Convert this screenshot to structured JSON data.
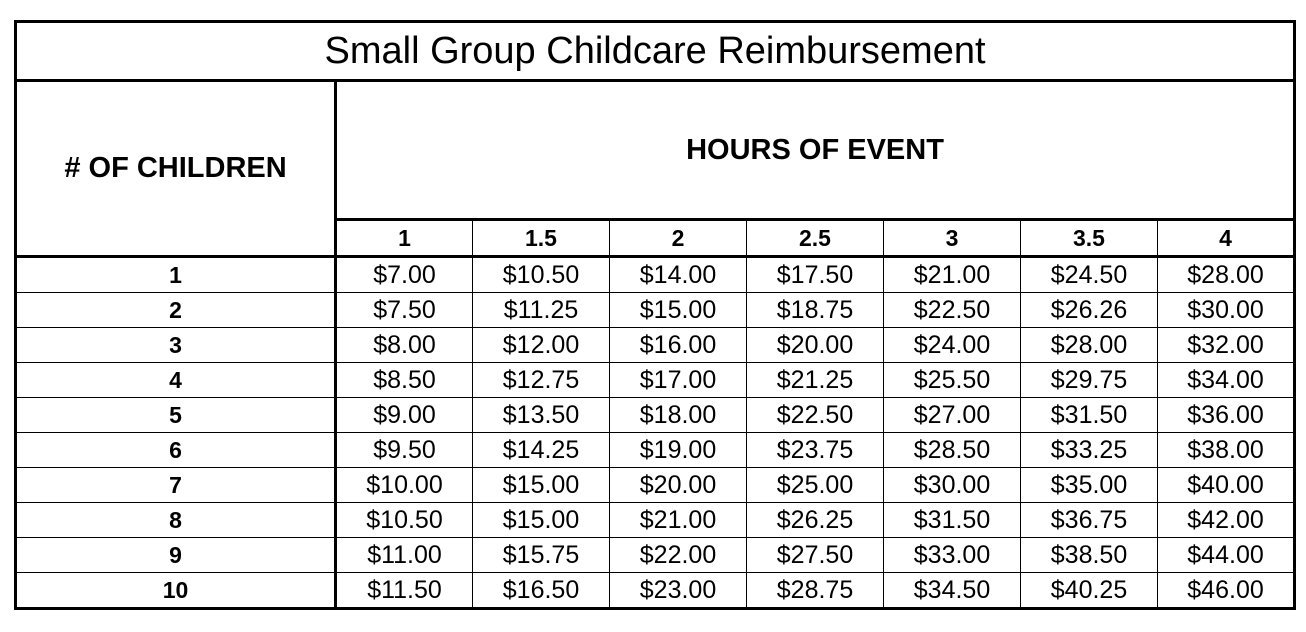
{
  "table": {
    "title": "Small Group Childcare Reimbursement",
    "row_header": "# OF CHILDREN",
    "column_group_header": "HOURS OF EVENT",
    "hours": [
      "1",
      "1.5",
      "2",
      "2.5",
      "3",
      "3.5",
      "4"
    ],
    "rows": [
      {
        "children": "1",
        "values": [
          "$7.00",
          "$10.50",
          "$14.00",
          "$17.50",
          "$21.00",
          "$24.50",
          "$28.00"
        ]
      },
      {
        "children": "2",
        "values": [
          "$7.50",
          "$11.25",
          "$15.00",
          "$18.75",
          "$22.50",
          "$26.26",
          "$30.00"
        ]
      },
      {
        "children": "3",
        "values": [
          "$8.00",
          "$12.00",
          "$16.00",
          "$20.00",
          "$24.00",
          "$28.00",
          "$32.00"
        ]
      },
      {
        "children": "4",
        "values": [
          "$8.50",
          "$12.75",
          "$17.00",
          "$21.25",
          "$25.50",
          "$29.75",
          "$34.00"
        ]
      },
      {
        "children": "5",
        "values": [
          "$9.00",
          "$13.50",
          "$18.00",
          "$22.50",
          "$27.00",
          "$31.50",
          "$36.00"
        ]
      },
      {
        "children": "6",
        "values": [
          "$9.50",
          "$14.25",
          "$19.00",
          "$23.75",
          "$28.50",
          "$33.25",
          "$38.00"
        ]
      },
      {
        "children": "7",
        "values": [
          "$10.00",
          "$15.00",
          "$20.00",
          "$25.00",
          "$30.00",
          "$35.00",
          "$40.00"
        ]
      },
      {
        "children": "8",
        "values": [
          "$10.50",
          "$15.00",
          "$21.00",
          "$26.25",
          "$31.50",
          "$36.75",
          "$42.00"
        ]
      },
      {
        "children": "9",
        "values": [
          "$11.00",
          "$15.75",
          "$22.00",
          "$27.50",
          "$33.00",
          "$38.50",
          "$44.00"
        ]
      },
      {
        "children": "10",
        "values": [
          "$11.50",
          "$16.50",
          "$23.00",
          "$28.75",
          "$34.50",
          "$40.25",
          "$46.00"
        ]
      }
    ]
  }
}
